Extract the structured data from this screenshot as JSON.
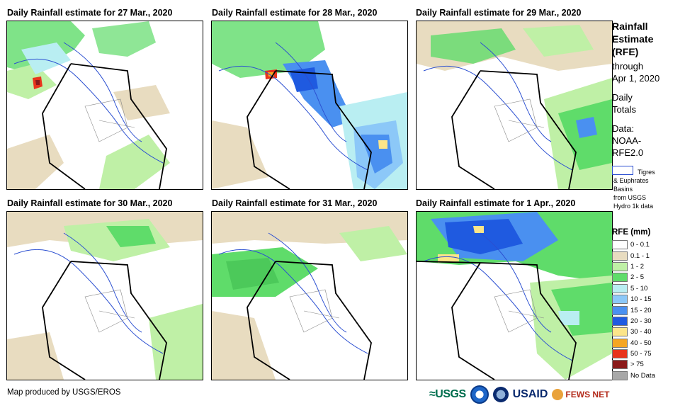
{
  "panels": [
    {
      "title": "Daily Rainfall estimate for 27 Mar., 2020"
    },
    {
      "title": "Daily Rainfall estimate for 28 Mar., 2020"
    },
    {
      "title": "Daily Rainfall estimate for 29 Mar., 2020"
    },
    {
      "title": "Daily Rainfall estimate for 30 Mar., 2020"
    },
    {
      "title": "Daily Rainfall estimate for 31 Mar., 2020"
    },
    {
      "title": "Daily Rainfall estimate for 1 Apr., 2020"
    }
  ],
  "sidebar": {
    "title_lines": [
      "Rainfall",
      "Estimate",
      "(RFE)"
    ],
    "through": "through",
    "date": "Apr 1, 2020",
    "daily": "Daily",
    "totals": "Totals",
    "data_label": "Data:",
    "data_src1": "NOAA-",
    "data_src2": "RFE2.0",
    "basin_lines": [
      "Tigres",
      "& Euphrates",
      "Basins",
      "from USGS",
      "Hydro 1k data"
    ]
  },
  "legend": {
    "title": "RFE (mm)",
    "items": [
      {
        "label": "0 - 0.1",
        "color": "#ffffff"
      },
      {
        "label": "0.1 - 1",
        "color": "#e8dcc0"
      },
      {
        "label": "1 - 2",
        "color": "#bff0a6"
      },
      {
        "label": "2 - 5",
        "color": "#5fdc6a"
      },
      {
        "label": "5 - 10",
        "color": "#b9eef2"
      },
      {
        "label": "10 - 15",
        "color": "#8cc8f8"
      },
      {
        "label": "15 - 20",
        "color": "#4a90f0"
      },
      {
        "label": "20 - 30",
        "color": "#1f5ae0"
      },
      {
        "label": "30 - 40",
        "color": "#fce58a"
      },
      {
        "label": "40 - 50",
        "color": "#f5a623"
      },
      {
        "label": "50 - 75",
        "color": "#e8341c"
      },
      {
        "label": "> 75",
        "color": "#8b1a1a"
      },
      {
        "label": "No Data",
        "color": "#a8a8a8"
      }
    ]
  },
  "footer": {
    "credit": "Map produced by USGS/EROS"
  },
  "logos": {
    "usgs": "≈USGS",
    "usaid": "USAID",
    "fews": "FEWS NET"
  }
}
